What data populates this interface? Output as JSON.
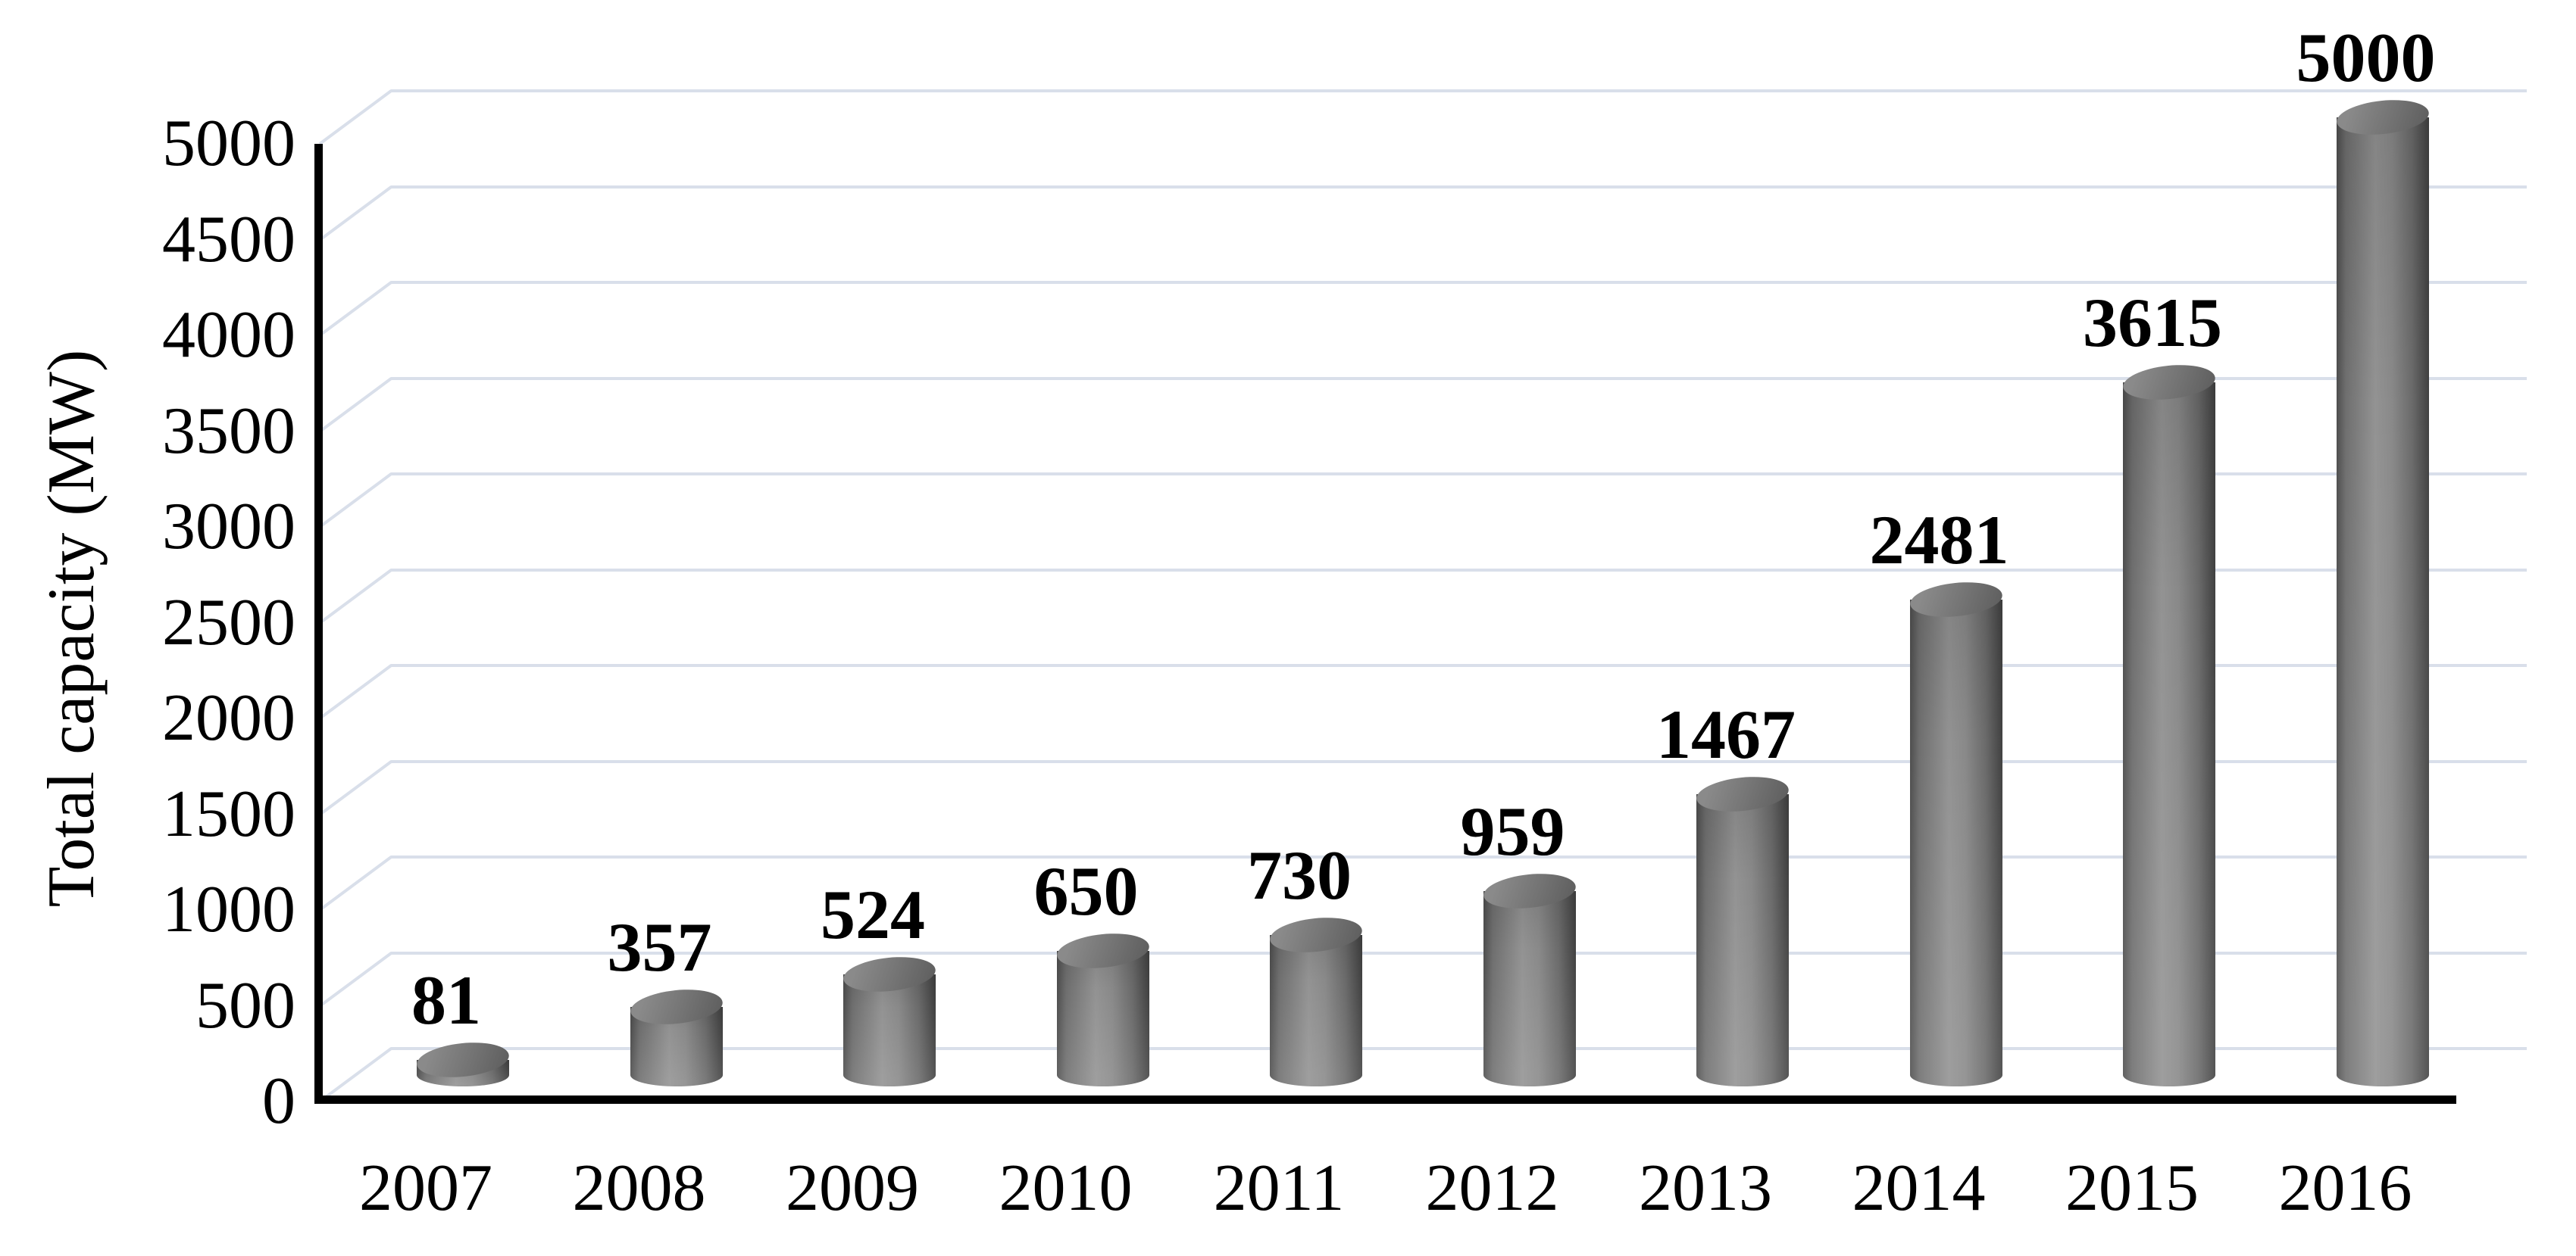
{
  "chart_data": {
    "type": "bar",
    "style": "3d-cylinder",
    "title": "",
    "xlabel": "",
    "ylabel": "Total capacity (MW)",
    "categories": [
      "2007",
      "2008",
      "2009",
      "2010",
      "2011",
      "2012",
      "2013",
      "2014",
      "2015",
      "2016"
    ],
    "values": [
      81,
      357,
      524,
      650,
      730,
      959,
      1467,
      2481,
      3615,
      5000
    ],
    "data_labels": [
      "81",
      "357",
      "524",
      "650",
      "730",
      "959",
      "1467",
      "2481",
      "3615",
      "5000"
    ],
    "ylim": [
      0,
      5000
    ],
    "ytick_step": 500,
    "yticks": [
      "0",
      "500",
      "1000",
      "1500",
      "2000",
      "2500",
      "3000",
      "3500",
      "4000",
      "4500",
      "5000"
    ],
    "grid": true,
    "legend": false,
    "colors": {
      "background": "#ffffff",
      "text": "#000000",
      "axis": "#000000",
      "gridline": "#d9dfea",
      "bar_light": "#939393",
      "bar_mid": "#757575",
      "bar_dark": "#414141"
    }
  }
}
